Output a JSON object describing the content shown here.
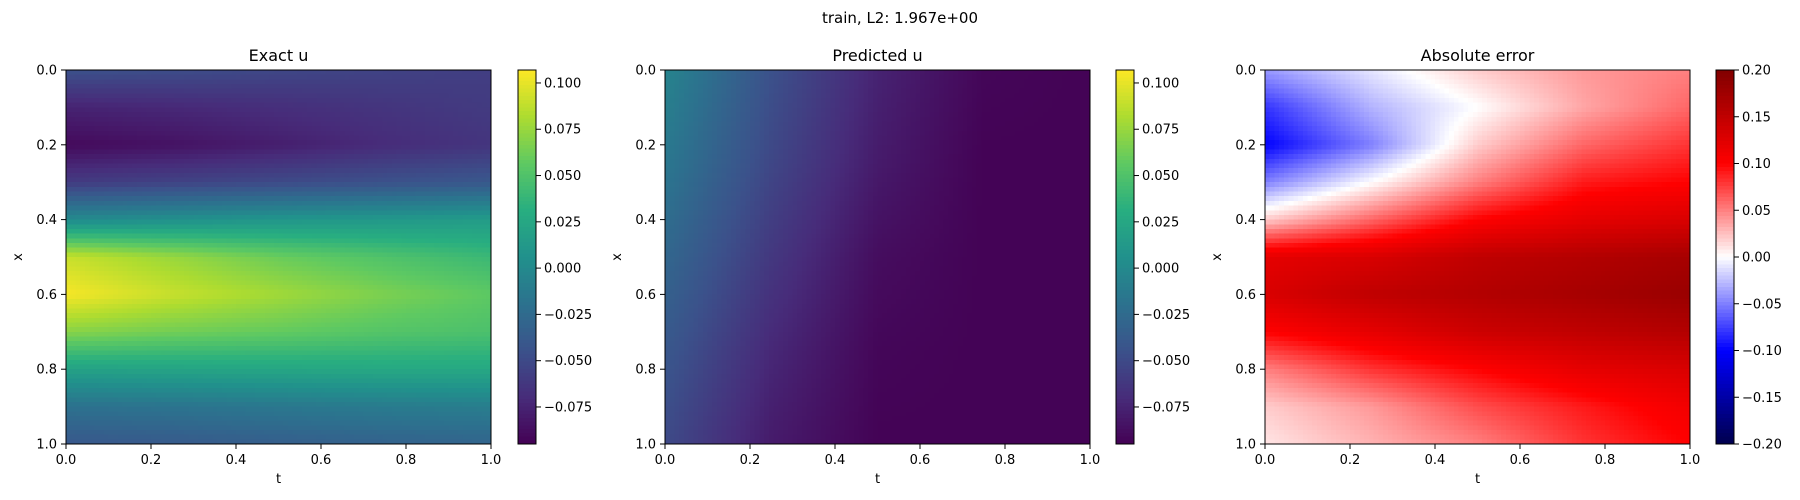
{
  "suptitle": "train, L2: 1.967e+00",
  "chart_data": [
    {
      "type": "heatmap",
      "title": "Exact u",
      "xlabel": "t",
      "ylabel": "x",
      "xlim": [
        0.0,
        1.0
      ],
      "ylim": [
        1.0,
        0.0
      ],
      "xticks": [
        "0.0",
        "0.2",
        "0.4",
        "0.6",
        "0.8",
        "1.0"
      ],
      "yticks": [
        "0.0",
        "0.2",
        "0.4",
        "0.6",
        "0.8",
        "1.0"
      ],
      "colormap": "viridis",
      "clim": [
        -0.095,
        0.107
      ],
      "colorbar_ticks": [
        "0.100",
        "0.075",
        "0.050",
        "0.025",
        "0.000",
        "−0.025",
        "−0.050",
        "−0.075"
      ],
      "colorbar_tick_values": [
        0.1,
        0.075,
        0.05,
        0.025,
        0.0,
        -0.025,
        -0.05,
        -0.075
      ],
      "x_samples": [
        0.0,
        0.25,
        0.5,
        0.75,
        1.0
      ],
      "y_samples": [
        0.0,
        0.1,
        0.2,
        0.3,
        0.4,
        0.5,
        0.6,
        0.7,
        0.8,
        0.9,
        1.0
      ],
      "values": [
        [
          -0.045,
          -0.048,
          -0.052,
          -0.055,
          -0.058
        ],
        [
          -0.075,
          -0.072,
          -0.068,
          -0.064,
          -0.06
        ],
        [
          -0.09,
          -0.085,
          -0.078,
          -0.07,
          -0.064
        ],
        [
          -0.06,
          -0.055,
          -0.05,
          -0.045,
          -0.04
        ],
        [
          0.0,
          0.005,
          0.01,
          0.012,
          0.015
        ],
        [
          0.09,
          0.075,
          0.06,
          0.05,
          0.04
        ],
        [
          0.105,
          0.09,
          0.078,
          0.066,
          0.056
        ],
        [
          0.07,
          0.063,
          0.058,
          0.052,
          0.048
        ],
        [
          0.02,
          0.022,
          0.024,
          0.026,
          0.026
        ],
        [
          -0.02,
          -0.018,
          -0.015,
          -0.012,
          -0.01
        ],
        [
          -0.04,
          -0.038,
          -0.035,
          -0.032,
          -0.03
        ]
      ]
    },
    {
      "type": "heatmap",
      "title": "Predicted u",
      "xlabel": "t",
      "ylabel": "x",
      "xlim": [
        0.0,
        1.0
      ],
      "ylim": [
        1.0,
        0.0
      ],
      "xticks": [
        "0.0",
        "0.2",
        "0.4",
        "0.6",
        "0.8",
        "1.0"
      ],
      "yticks": [
        "0.0",
        "0.2",
        "0.4",
        "0.6",
        "0.8",
        "1.0"
      ],
      "colormap": "viridis",
      "clim": [
        -0.095,
        0.107
      ],
      "colorbar_ticks": [
        "0.100",
        "0.075",
        "0.050",
        "0.025",
        "0.000",
        "−0.025",
        "−0.050",
        "−0.075"
      ],
      "colorbar_tick_values": [
        0.1,
        0.075,
        0.05,
        0.025,
        0.0,
        -0.025,
        -0.05,
        -0.075
      ],
      "x_samples": [
        0.0,
        0.25,
        0.5,
        0.75,
        1.0
      ],
      "y_samples": [
        0.0,
        0.25,
        0.5,
        0.75,
        1.0
      ],
      "values": [
        [
          -0.005,
          -0.045,
          -0.075,
          -0.092,
          -0.094
        ],
        [
          -0.015,
          -0.052,
          -0.08,
          -0.094,
          -0.094
        ],
        [
          -0.028,
          -0.062,
          -0.088,
          -0.094,
          -0.094
        ],
        [
          -0.04,
          -0.072,
          -0.092,
          -0.094,
          -0.094
        ],
        [
          -0.05,
          -0.08,
          -0.094,
          -0.094,
          -0.094
        ]
      ]
    },
    {
      "type": "heatmap",
      "title": "Absolute error",
      "xlabel": "t",
      "ylabel": "x",
      "xlim": [
        0.0,
        1.0
      ],
      "ylim": [
        1.0,
        0.0
      ],
      "xticks": [
        "0.0",
        "0.2",
        "0.4",
        "0.6",
        "0.8",
        "1.0"
      ],
      "yticks": [
        "0.0",
        "0.2",
        "0.4",
        "0.6",
        "0.8",
        "1.0"
      ],
      "colormap": "seismic",
      "clim": [
        -0.2,
        0.2
      ],
      "colorbar_ticks": [
        "0.20",
        "0.15",
        "0.10",
        "0.05",
        "0.00",
        "−0.05",
        "−0.10",
        "−0.15",
        "−0.20"
      ],
      "colorbar_tick_values": [
        0.2,
        0.15,
        0.1,
        0.05,
        0.0,
        -0.05,
        -0.1,
        -0.15,
        -0.2
      ],
      "x_samples": [
        0.0,
        0.25,
        0.5,
        0.75,
        1.0
      ],
      "y_samples": [
        0.0,
        0.1,
        0.2,
        0.3,
        0.4,
        0.5,
        0.6,
        0.7,
        0.8,
        0.9,
        1.0
      ],
      "values": [
        [
          -0.04,
          -0.01,
          0.02,
          0.04,
          0.05
        ],
        [
          -0.08,
          -0.03,
          0.0,
          0.035,
          0.06
        ],
        [
          -0.1,
          -0.05,
          0.02,
          0.06,
          0.08
        ],
        [
          -0.05,
          0.0,
          0.05,
          0.09,
          0.1
        ],
        [
          0.02,
          0.06,
          0.1,
          0.12,
          0.13
        ],
        [
          0.12,
          0.13,
          0.15,
          0.16,
          0.17
        ],
        [
          0.13,
          0.15,
          0.16,
          0.17,
          0.18
        ],
        [
          0.1,
          0.12,
          0.14,
          0.15,
          0.16
        ],
        [
          0.05,
          0.08,
          0.1,
          0.12,
          0.13
        ],
        [
          0.02,
          0.04,
          0.07,
          0.09,
          0.11
        ],
        [
          0.01,
          0.03,
          0.05,
          0.08,
          0.1
        ]
      ]
    }
  ]
}
